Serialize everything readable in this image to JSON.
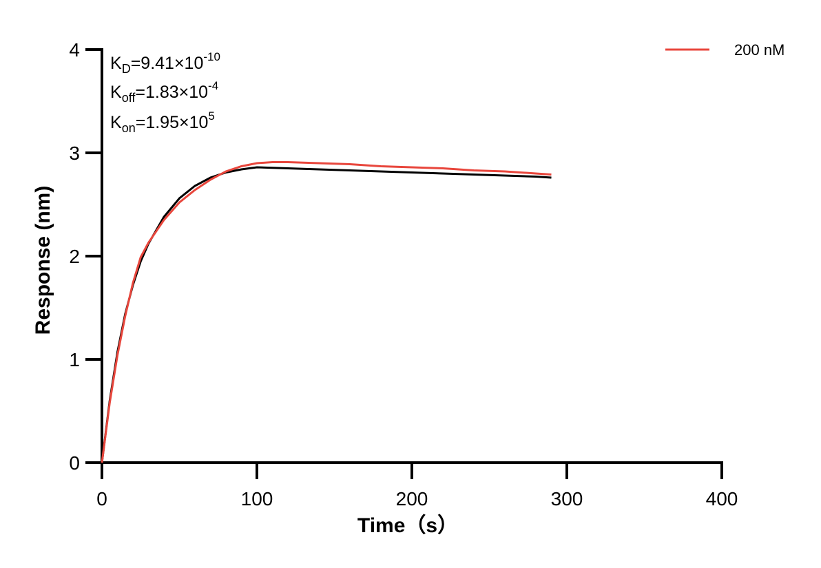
{
  "chart_data": {
    "type": "line",
    "xlabel": "Time（s）",
    "ylabel": "Response (nm)",
    "xlim": [
      0,
      400
    ],
    "ylim": [
      0,
      4
    ],
    "x_ticks": [
      "0",
      "100",
      "200",
      "300",
      "400"
    ],
    "y_ticks": [
      "0",
      "1",
      "2",
      "3",
      "4"
    ],
    "grid": false,
    "legend_position": "top-right",
    "annotations": {
      "kd": {
        "base": "K",
        "sub": "D",
        "mid": "=9.41×10",
        "sup": "-10"
      },
      "koff": {
        "base": "K",
        "sub": "off",
        "mid": "=1.83×10",
        "sup": "-4"
      },
      "kon": {
        "base": "K",
        "sub": "on",
        "mid": "=1.95×10",
        "sup": "5"
      }
    },
    "series": [
      {
        "name": "200 nM",
        "color": "#e8463c",
        "x": [
          0,
          5,
          10,
          15,
          20,
          25,
          30,
          40,
          50,
          60,
          70,
          80,
          90,
          100,
          110,
          120,
          140,
          160,
          180,
          200,
          220,
          240,
          260,
          280,
          290
        ],
        "y": [
          0,
          0.58,
          1.04,
          1.42,
          1.74,
          1.99,
          2.13,
          2.35,
          2.52,
          2.64,
          2.74,
          2.82,
          2.87,
          2.9,
          2.91,
          2.91,
          2.9,
          2.89,
          2.87,
          2.86,
          2.85,
          2.83,
          2.82,
          2.8,
          2.79
        ]
      },
      {
        "color": "#000000",
        "x": [
          0,
          5,
          10,
          15,
          20,
          25,
          30,
          40,
          50,
          60,
          70,
          80,
          90,
          100,
          120,
          140,
          160,
          180,
          200,
          220,
          240,
          260,
          280,
          290
        ],
        "y": [
          0,
          0.6,
          1.07,
          1.44,
          1.72,
          1.95,
          2.12,
          2.38,
          2.56,
          2.68,
          2.76,
          2.81,
          2.84,
          2.86,
          2.85,
          2.84,
          2.83,
          2.82,
          2.81,
          2.8,
          2.79,
          2.78,
          2.77,
          2.76
        ]
      }
    ]
  }
}
